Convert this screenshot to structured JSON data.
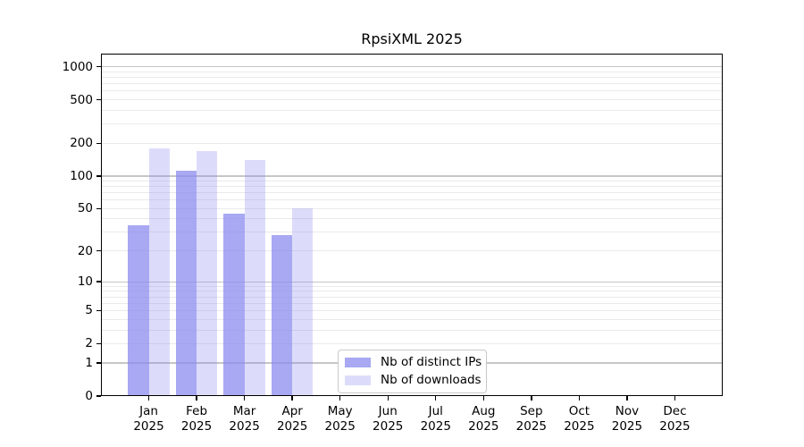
{
  "title": "RpsiXML 2025",
  "chart_data": {
    "type": "bar",
    "scale": "log1p",
    "title": "RpsiXML 2025",
    "xlabel": "",
    "ylabel": "",
    "grid": "horizontal",
    "legend_position": "bottom-center-inside",
    "categories": [
      {
        "month": "Jan",
        "year": "2025"
      },
      {
        "month": "Feb",
        "year": "2025"
      },
      {
        "month": "Mar",
        "year": "2025"
      },
      {
        "month": "Apr",
        "year": "2025"
      },
      {
        "month": "May",
        "year": "2025"
      },
      {
        "month": "Jun",
        "year": "2025"
      },
      {
        "month": "Jul",
        "year": "2025"
      },
      {
        "month": "Aug",
        "year": "2025"
      },
      {
        "month": "Sep",
        "year": "2025"
      },
      {
        "month": "Oct",
        "year": "2025"
      },
      {
        "month": "Nov",
        "year": "2025"
      },
      {
        "month": "Dec",
        "year": "2025"
      }
    ],
    "series": [
      {
        "name": "Nb of distinct IPs",
        "color": "#8888ee",
        "alpha": 0.73,
        "values": [
          35,
          112,
          45,
          28,
          null,
          null,
          null,
          null,
          null,
          null,
          null,
          null
        ]
      },
      {
        "name": "Nb of downloads",
        "color": "#8888ee",
        "alpha": 0.29,
        "values": [
          178,
          170,
          140,
          50,
          null,
          null,
          null,
          null,
          null,
          null,
          null,
          null
        ]
      }
    ],
    "y_ticks": [
      0,
      1,
      2,
      5,
      10,
      20,
      50,
      100,
      200,
      500,
      1000
    ],
    "y_major_gridlines": [
      1,
      10,
      100,
      1000
    ],
    "ylim": [
      0,
      1316
    ]
  },
  "colors": {
    "major_gridline": "#c6c6c6",
    "minor_gridline": "#eaeaea",
    "axis": "#000000",
    "legend_border": "#c9c9c9",
    "background": "#ffffff"
  }
}
